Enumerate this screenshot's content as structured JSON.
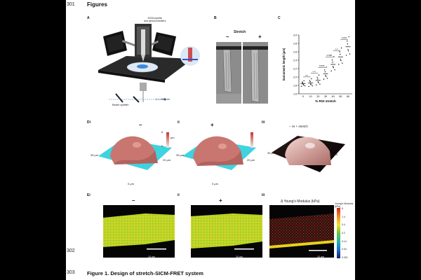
{
  "page": {
    "line_numbers": [
      "301",
      "302",
      "303"
    ],
    "heading": "Figures",
    "caption": "Figure 1. Design of stretch-SICM-FRET system"
  },
  "panelA": {
    "label": "A",
    "pipette_label": "SICM pipette\nand piezocontrollers",
    "beam_label": "Beam splitter",
    "laser_label": "λ = 405 nm"
  },
  "panelB": {
    "label": "B",
    "title": "Stretch",
    "minus": "–",
    "plus": "+"
  },
  "panelC": {
    "label": "C",
    "ylabel": "Sarcomeric length (μm)",
    "xlabel": "% ROI stretch",
    "sig_labels": [
      "n.s.",
      "n.s.",
      "0.006",
      "0.006",
      "n.s.",
      "0.001"
    ]
  },
  "chart_data": {
    "type": "scatter",
    "xlabel": "% ROI stretch",
    "ylabel": "Sarcomeric length (μm)",
    "categories": [
      "0",
      "10",
      "20",
      "30",
      "40",
      "50",
      "60"
    ],
    "yticks": [
      "1.6",
      "1.8",
      "2.0",
      "2.2",
      "2.4",
      "2.6",
      "2.8",
      "3.0"
    ],
    "ylim": [
      1.6,
      3.0
    ],
    "series": [
      {
        "values": [
          1.84,
          1.86,
          1.92,
          2.08,
          2.3,
          2.48,
          2.72
        ]
      }
    ],
    "annotations": [
      "n.s.",
      "n.s.",
      "0.006",
      "0.006",
      "n.s.",
      "0.001"
    ]
  },
  "panelD": {
    "label_i": "Di",
    "label_ii": "ii",
    "label_iii": "iii",
    "minus": "–",
    "plus": "+",
    "compare": "– vs + stretch",
    "axis_35": "35 μm",
    "axis_20": "20 μm",
    "axis_0": "0 μm",
    "scale_top": "6",
    "scale_bottom": "0",
    "scale_unit": "μm"
  },
  "panelE": {
    "label_i": "Ei",
    "label_ii": "ii",
    "label_iii": "iii",
    "minus": "–",
    "plus": "+",
    "delta_title": "Δ Young's Modulus (kPa)",
    "legend_title": "Young's Modulus\n(kPa)",
    "legend_ticks": [
      "6",
      "1.4",
      "0.4",
      "0.2",
      "0.14",
      "0.04",
      "0.001"
    ],
    "scalebar": "10 μm"
  }
}
